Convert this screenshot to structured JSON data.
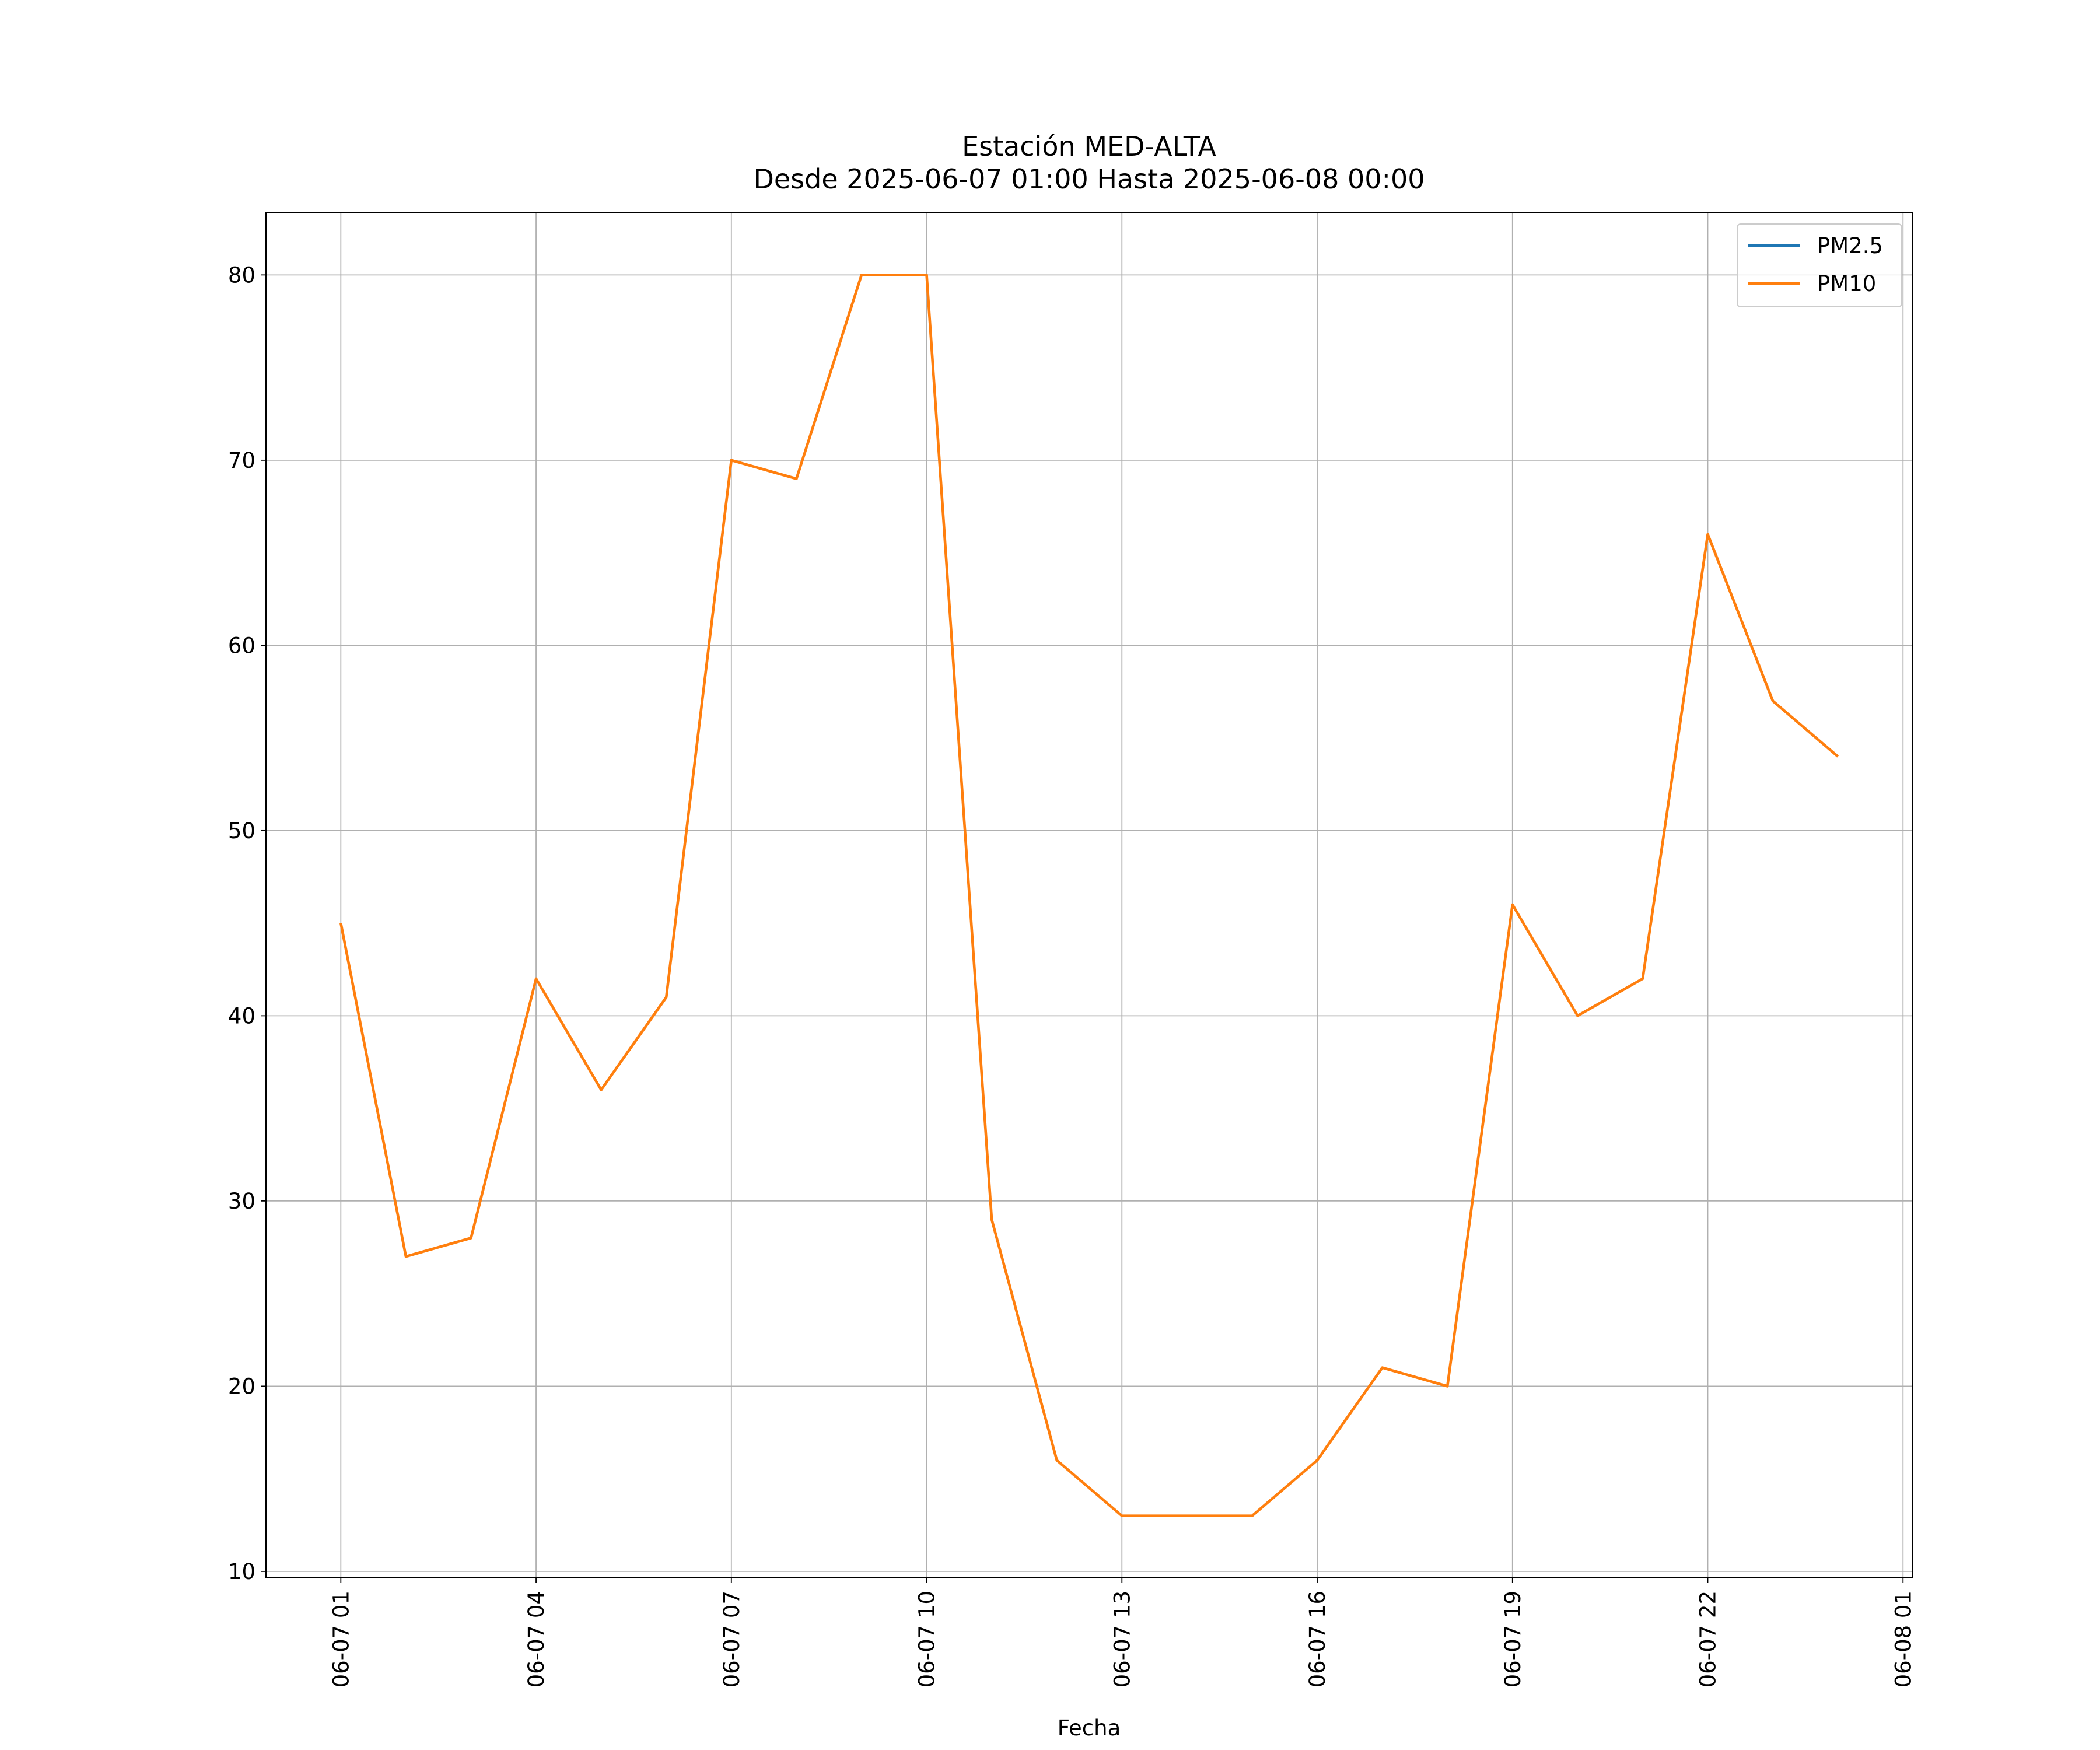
{
  "chart_data": {
    "type": "line",
    "title": "Estación MED-ALTA",
    "subtitle": "Desde 2025-06-07 01:00 Hasta 2025-06-08 00:00",
    "x_label": "Fecha",
    "x": [
      "06-07 01",
      "06-07 02",
      "06-07 03",
      "06-07 04",
      "06-07 05",
      "06-07 06",
      "06-07 07",
      "06-07 08",
      "06-07 09",
      "06-07 10",
      "06-07 11",
      "06-07 12",
      "06-07 13",
      "06-07 14",
      "06-07 15",
      "06-07 16",
      "06-07 17",
      "06-07 18",
      "06-07 19",
      "06-07 20",
      "06-07 21",
      "06-07 22",
      "06-07 23",
      "06-08 00"
    ],
    "series": [
      {
        "name": "PM2.5",
        "color": "#1f77b4",
        "values": [
          null,
          null,
          null,
          null,
          null,
          null,
          null,
          null,
          null,
          null,
          null,
          null,
          null,
          null,
          null,
          null,
          null,
          null,
          null,
          null,
          null,
          null,
          null,
          null
        ]
      },
      {
        "name": "PM10",
        "color": "#ff7f0e",
        "values": [
          45,
          27,
          28,
          42,
          36,
          41,
          70,
          69,
          80,
          80,
          29,
          16,
          13,
          13,
          13,
          16,
          21,
          20,
          46,
          40,
          42,
          66,
          57,
          54
        ]
      }
    ],
    "xlim": [
      "06-06 23:51",
      "06-08 01:09"
    ],
    "xticks": [
      "06-07 01",
      "06-07 04",
      "06-07 07",
      "06-07 10",
      "06-07 13",
      "06-07 16",
      "06-07 19",
      "06-07 22",
      "06-08 01"
    ],
    "ylim": [
      9.65,
      83.35
    ],
    "yticks": [
      10,
      20,
      30,
      40,
      50,
      60,
      70,
      80
    ],
    "grid": true,
    "legend": "upper right"
  }
}
